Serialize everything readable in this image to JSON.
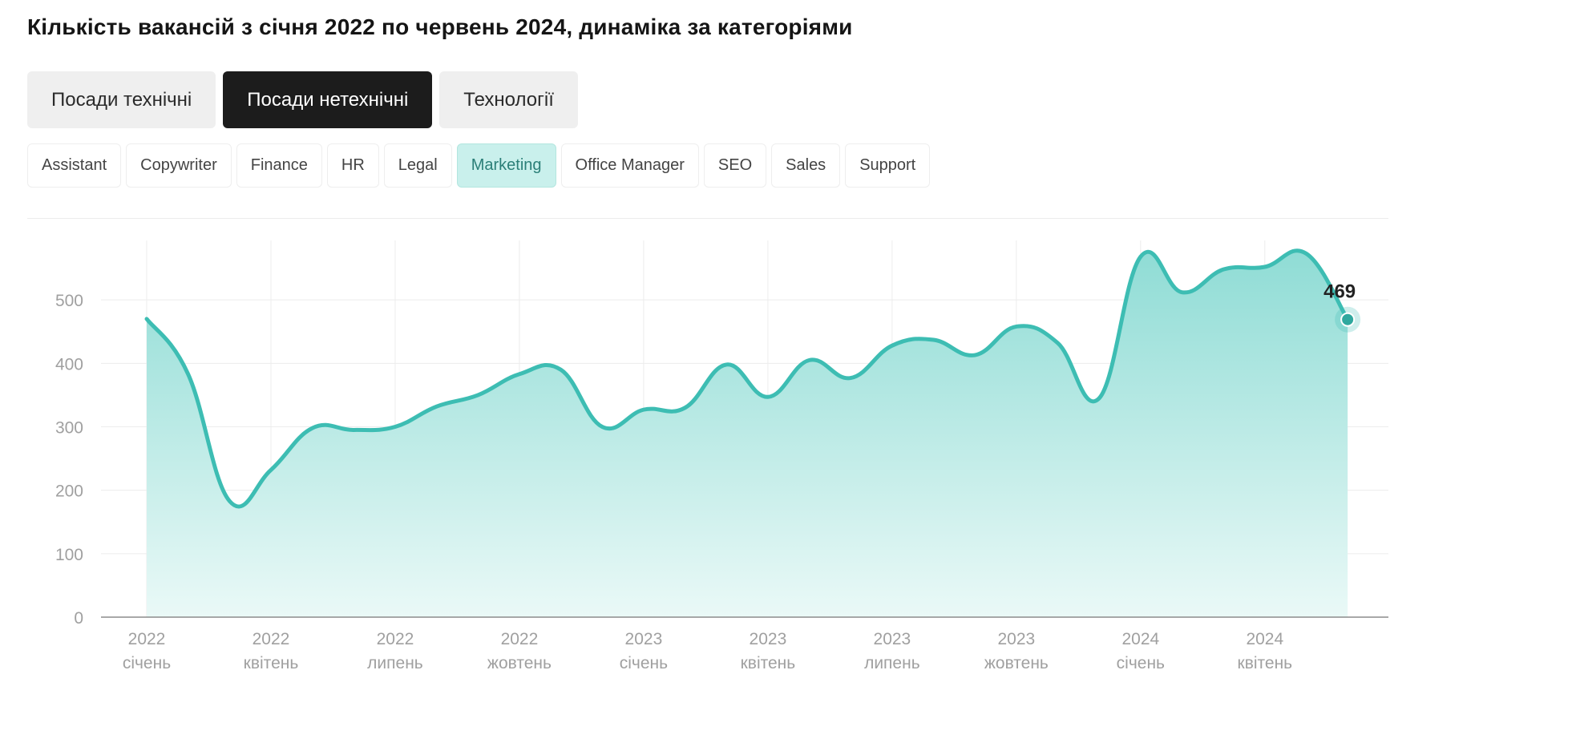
{
  "title": "Кількість вакансій з січня 2022 по червень 2024, динаміка за категоріями",
  "tabs": [
    {
      "label": "Посади технічні",
      "active": false
    },
    {
      "label": "Посади нетехнічні",
      "active": true
    },
    {
      "label": "Технології",
      "active": false
    }
  ],
  "categories": [
    {
      "label": "Assistant",
      "active": false
    },
    {
      "label": "Copywriter",
      "active": false
    },
    {
      "label": "Finance",
      "active": false
    },
    {
      "label": "HR",
      "active": false
    },
    {
      "label": "Legal",
      "active": false
    },
    {
      "label": "Marketing",
      "active": true
    },
    {
      "label": "Office Manager",
      "active": false
    },
    {
      "label": "SEO",
      "active": false
    },
    {
      "label": "Sales",
      "active": false
    },
    {
      "label": "Support",
      "active": false
    }
  ],
  "colors": {
    "accent": "#3dbdb3",
    "area_top": "#8fdcd5",
    "area_bottom": "#eaf9f7",
    "active_tab": "#1c1c1c",
    "active_chip": "#c9f0ec"
  },
  "chart_data": {
    "type": "area",
    "title": "",
    "xlabel": "",
    "ylabel": "",
    "ylim": [
      0,
      600
    ],
    "y_ticks": [
      0,
      100,
      200,
      300,
      400,
      500
    ],
    "grid": true,
    "x_labels": [
      {
        "year": "2022",
        "month": "січень"
      },
      {
        "year": "2022",
        "month": "квітень"
      },
      {
        "year": "2022",
        "month": "липень"
      },
      {
        "year": "2022",
        "month": "жовтень"
      },
      {
        "year": "2023",
        "month": "січень"
      },
      {
        "year": "2023",
        "month": "квітень"
      },
      {
        "year": "2023",
        "month": "липень"
      },
      {
        "year": "2023",
        "month": "жовтень"
      },
      {
        "year": "2024",
        "month": "січень"
      },
      {
        "year": "2024",
        "month": "квітень"
      }
    ],
    "x": [
      "2022-01",
      "2022-02",
      "2022-03",
      "2022-04",
      "2022-05",
      "2022-06",
      "2022-07",
      "2022-08",
      "2022-09",
      "2022-10",
      "2022-11",
      "2022-12",
      "2023-01",
      "2023-02",
      "2023-03",
      "2023-04",
      "2023-05",
      "2023-06",
      "2023-07",
      "2023-08",
      "2023-09",
      "2023-10",
      "2023-11",
      "2023-12",
      "2024-01",
      "2024-02",
      "2024-03",
      "2024-04",
      "2024-05",
      "2024-06"
    ],
    "values": [
      470,
      383,
      183,
      232,
      298,
      295,
      300,
      332,
      350,
      383,
      390,
      300,
      327,
      330,
      398,
      347,
      405,
      377,
      428,
      437,
      413,
      458,
      432,
      345,
      568,
      512,
      548,
      552,
      573,
      469
    ],
    "last_value_label": "469"
  }
}
